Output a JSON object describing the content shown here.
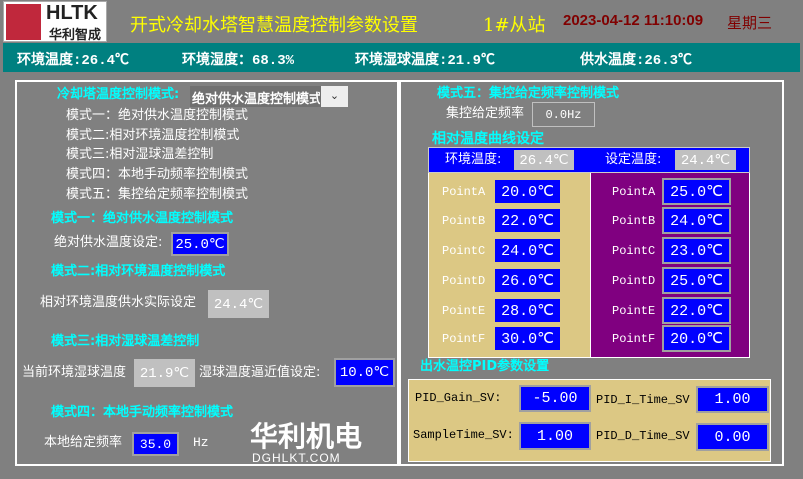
{
  "header": {
    "logo_text": "HLTK",
    "logo_sub": "华利智成",
    "title": "开式冷却水塔智慧温度控制参数设置",
    "station": "1#从站",
    "datetime": "2023-04-12 11:10:09",
    "weekday": "星期三",
    "colors": {
      "title": "#ffff00",
      "datetime": "#800000",
      "status_bar": "#008080"
    }
  },
  "status_bar": [
    {
      "label": "环境温度:26.4℃"
    },
    {
      "label": "环境湿度：68.3%"
    },
    {
      "label": "环境湿球温度:21.9℃"
    },
    {
      "label": "供水温度:26.3℃"
    }
  ],
  "left": {
    "mode_select_label": "冷却塔温度控制模式:",
    "mode_select_value": "绝对供水温度控制模式",
    "mode_list": [
      "模式一：绝对供水温度控制模式",
      "模式二:相对环境温度控制模式",
      "模式三:相对湿球温差控制",
      "模式四：本地手动频率控制模式",
      "模式五：集控给定频率控制模式"
    ],
    "mode1": {
      "title": "模式一：绝对供水温度控制模式",
      "label": "绝对供水温度设定:",
      "value": "25.0℃"
    },
    "mode2": {
      "title": "模式二:相对环境温度控制模式",
      "label": "相对环境温度供水实际设定",
      "value": "24.4℃"
    },
    "mode3": {
      "title": "模式三:相对湿球温差控制",
      "label1": "当前环境湿球温度",
      "value1": "21.9℃",
      "label2": "湿球温度逼近值设定:",
      "value2": "10.0℃"
    },
    "mode4": {
      "title": "模式四：本地手动频率控制模式",
      "label": "本地给定频率",
      "value": "35.0",
      "unit": "Hz"
    }
  },
  "right": {
    "mode5": {
      "title": "模式五：集控给定频率控制模式",
      "label": "集控给定频率",
      "value": "0.0Hz"
    },
    "curve": {
      "title": "相对温度曲线设定",
      "env_label": "环境温度:",
      "env_value": "26.4℃",
      "set_label": "设定温度:",
      "set_value": "24.4℃",
      "left_points": [
        {
          "name": "PointA",
          "value": "20.0℃"
        },
        {
          "name": "PointB",
          "value": "22.0℃"
        },
        {
          "name": "PointC",
          "value": "24.0℃"
        },
        {
          "name": "PointD",
          "value": "26.0℃"
        },
        {
          "name": "PointE",
          "value": "28.0℃"
        },
        {
          "name": "PointF",
          "value": "30.0℃"
        }
      ],
      "right_points": [
        {
          "name": "PointA",
          "value": "25.0℃"
        },
        {
          "name": "PointB",
          "value": "24.0℃"
        },
        {
          "name": "PointC",
          "value": "23.0℃"
        },
        {
          "name": "PointD",
          "value": "25.0℃"
        },
        {
          "name": "PointE",
          "value": "22.0℃"
        },
        {
          "name": "PointF",
          "value": "20.0℃"
        }
      ]
    },
    "pid": {
      "title": "出水温控PID参数设置",
      "gain_label": "PID_Gain_SV:",
      "gain_value": "-5.00",
      "itime_label": "PID_I_Time_SV",
      "itime_value": "1.00",
      "sample_label": "SampleTime_SV:",
      "sample_value": "1.00",
      "dtime_label": "PID_D_Time_SV",
      "dtime_value": "0.00"
    }
  },
  "watermark": {
    "cn": "华利机电",
    "en": "DGHLKT.COM"
  }
}
